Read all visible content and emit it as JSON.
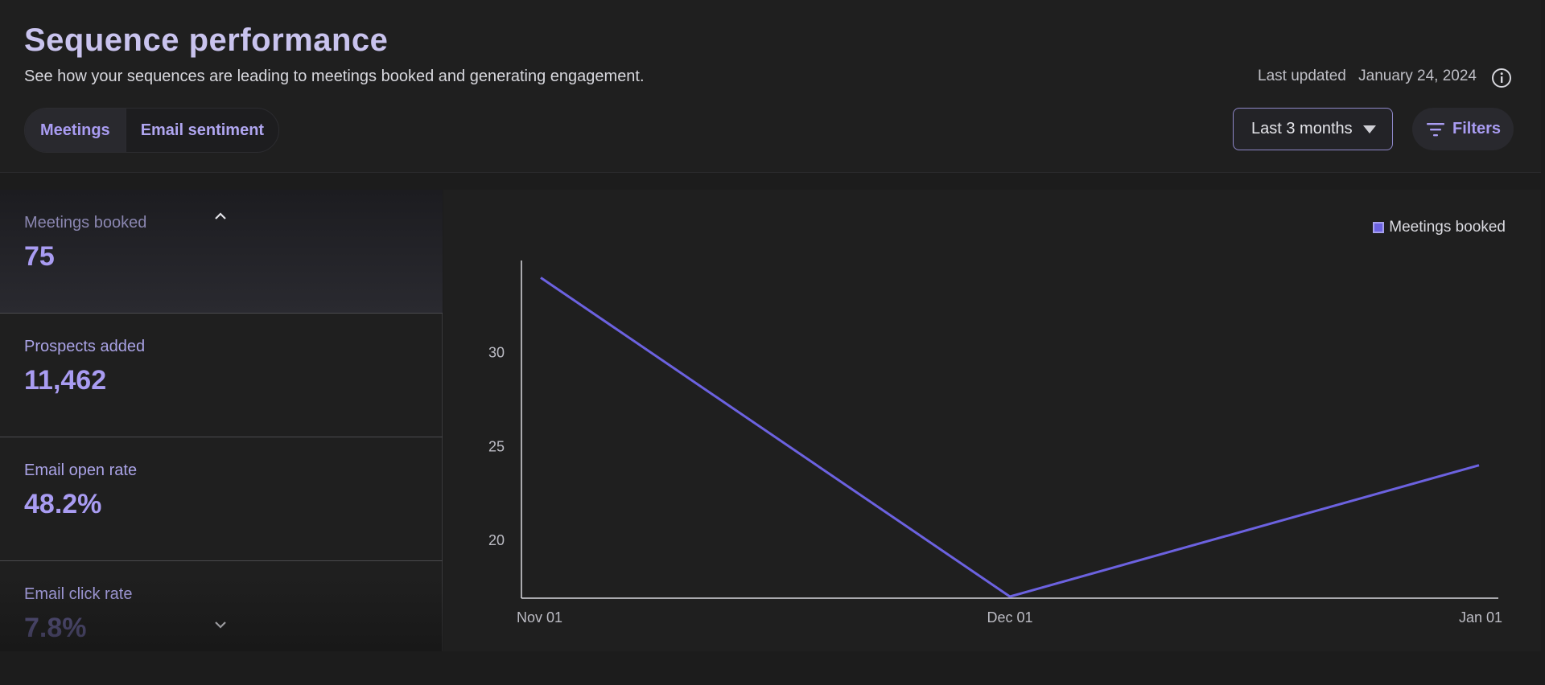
{
  "header": {
    "title": "Sequence performance",
    "subtitle": "See how your sequences are leading to meetings booked and generating engagement.",
    "tabs": [
      {
        "label": "Meetings",
        "active": true
      },
      {
        "label": "Email sentiment",
        "active": false
      }
    ],
    "last_updated_label": "Last updated",
    "last_updated_date": "January 24, 2024",
    "range_label": "Last 3 months",
    "filters_label": "Filters"
  },
  "metrics": [
    {
      "label": "Meetings booked",
      "value": "75",
      "active": true
    },
    {
      "label": "Prospects added",
      "value": "11,462",
      "active": false
    },
    {
      "label": "Email open rate",
      "value": "48.2%",
      "active": false
    },
    {
      "label": "Email click rate",
      "value": "7.8%",
      "active": false
    }
  ],
  "icons": {
    "info": "info-circle-icon",
    "caret": "caret-down-icon",
    "filter": "filter-lines-icon",
    "chevron_up": "chevron-up-icon",
    "chevron_down": "chevron-down-icon"
  },
  "colors": {
    "accent": "#a99cf2",
    "line": "#6c62e0",
    "background": "#1f1f1f"
  },
  "chart_data": {
    "type": "line",
    "legend": "Meetings booked",
    "legend_position": "top-right",
    "x": [
      "Nov 01",
      "Dec 01",
      "Jan 01"
    ],
    "series": [
      {
        "name": "Meetings booked",
        "values": [
          34,
          17,
          24
        ]
      }
    ],
    "yticks": [
      20,
      25,
      30
    ],
    "ylim": [
      17,
      35
    ],
    "grid": false
  }
}
